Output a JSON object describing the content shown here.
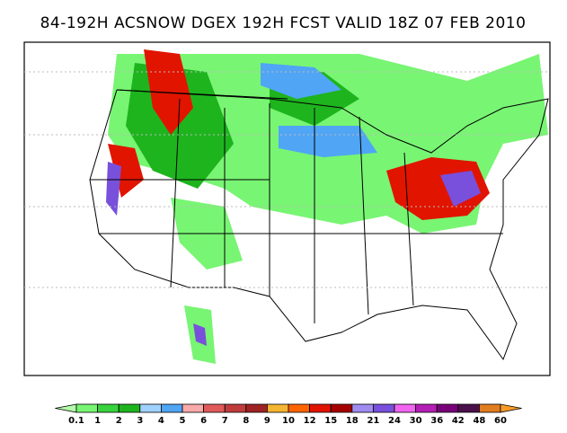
{
  "header": {
    "title": "84-192H ACSNOW DGEX 192H FCST VALID 18Z 07 FEB 2010"
  },
  "colorbar": {
    "labels": [
      "0.1",
      "1",
      "2",
      "3",
      "4",
      "5",
      "6",
      "7",
      "8",
      "9",
      "10",
      "12",
      "15",
      "18",
      "21",
      "24",
      "30",
      "36",
      "42",
      "48",
      "60"
    ],
    "colors": [
      "#b4faaa",
      "#78f573",
      "#37d23c",
      "#1eb41e",
      "#a0d2ff",
      "#50a5f5",
      "#1e6eeb",
      "#faaaaa",
      "#e15a5a",
      "#c03c3c",
      "#a02323",
      "#f5b432",
      "#ff6400",
      "#e11400",
      "#a50000",
      "#a08cf0",
      "#7850dc",
      "#3c1eaa",
      "#f064f0",
      "#b41eb4",
      "#780078",
      "#4b0f4b",
      "#e17d1e",
      "#fa9b28"
    ]
  }
}
